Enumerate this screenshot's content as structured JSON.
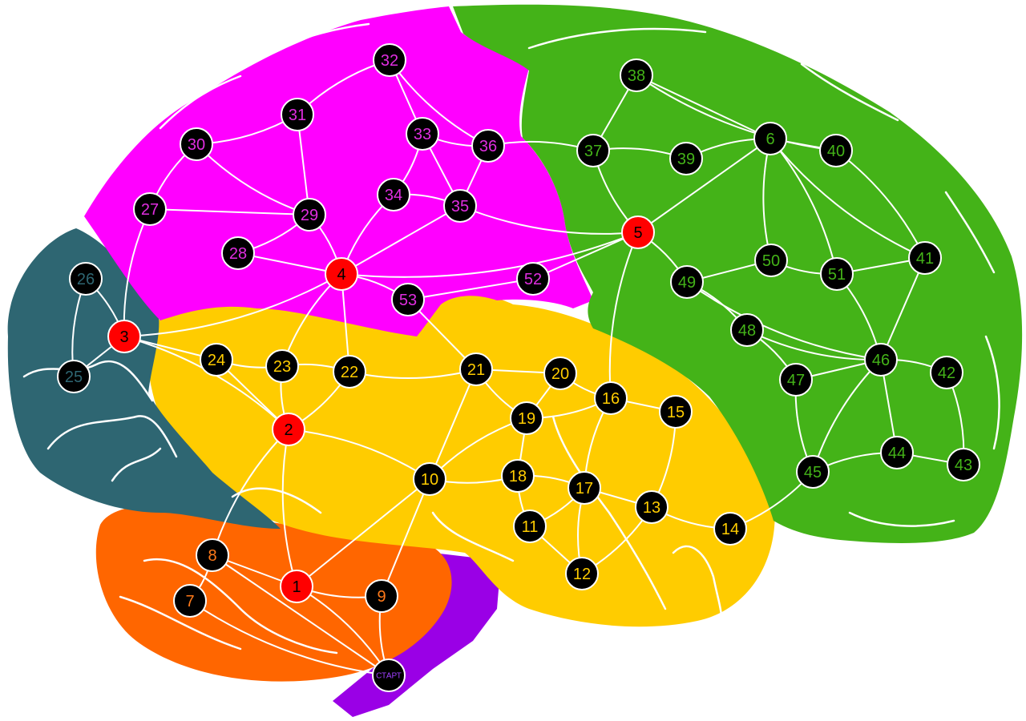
{
  "board": {
    "regions": {
      "frontal": "#44b318",
      "parietal": "#ff00ff",
      "occipital": "#2e6672",
      "temporal": "#ffcc00",
      "cerebellum": "#ff6600",
      "stem": "#9a00e6"
    },
    "node_fill_normal": "#000000",
    "node_fill_hub": "#ff0000",
    "node_text_color": {
      "frontal": "#44b318",
      "parietal": "#e02ee0",
      "occipital": "#2e6672",
      "temporal": "#ffcc00",
      "cerebellum": "#ff7a1a",
      "stem": "#a040ff",
      "hub": "#000000"
    },
    "start_label": "СТАРТ",
    "nodes": [
      {
        "id": "1",
        "label": "1",
        "region": "hub"
      },
      {
        "id": "2",
        "label": "2",
        "region": "hub"
      },
      {
        "id": "3",
        "label": "3",
        "region": "hub"
      },
      {
        "id": "4",
        "label": "4",
        "region": "hub"
      },
      {
        "id": "5",
        "label": "5",
        "region": "hub"
      },
      {
        "id": "6",
        "label": "6",
        "region": "frontal"
      },
      {
        "id": "7",
        "label": "7",
        "region": "cerebellum"
      },
      {
        "id": "8",
        "label": "8",
        "region": "cerebellum"
      },
      {
        "id": "9",
        "label": "9",
        "region": "cerebellum"
      },
      {
        "id": "10",
        "label": "10",
        "region": "temporal"
      },
      {
        "id": "11",
        "label": "11",
        "region": "temporal"
      },
      {
        "id": "12",
        "label": "12",
        "region": "temporal"
      },
      {
        "id": "13",
        "label": "13",
        "region": "temporal"
      },
      {
        "id": "14",
        "label": "14",
        "region": "temporal"
      },
      {
        "id": "15",
        "label": "15",
        "region": "temporal"
      },
      {
        "id": "16",
        "label": "16",
        "region": "temporal"
      },
      {
        "id": "17",
        "label": "17",
        "region": "temporal"
      },
      {
        "id": "18",
        "label": "18",
        "region": "temporal"
      },
      {
        "id": "19",
        "label": "19",
        "region": "temporal"
      },
      {
        "id": "20",
        "label": "20",
        "region": "temporal"
      },
      {
        "id": "21",
        "label": "21",
        "region": "temporal"
      },
      {
        "id": "22",
        "label": "22",
        "region": "temporal"
      },
      {
        "id": "23",
        "label": "23",
        "region": "temporal"
      },
      {
        "id": "24",
        "label": "24",
        "region": "temporal"
      },
      {
        "id": "25",
        "label": "25",
        "region": "occipital"
      },
      {
        "id": "26",
        "label": "26",
        "region": "occipital"
      },
      {
        "id": "27",
        "label": "27",
        "region": "parietal"
      },
      {
        "id": "28",
        "label": "28",
        "region": "parietal"
      },
      {
        "id": "29",
        "label": "29",
        "region": "parietal"
      },
      {
        "id": "30",
        "label": "30",
        "region": "parietal"
      },
      {
        "id": "31",
        "label": "31",
        "region": "parietal"
      },
      {
        "id": "32",
        "label": "32",
        "region": "parietal"
      },
      {
        "id": "33",
        "label": "33",
        "region": "parietal"
      },
      {
        "id": "34",
        "label": "34",
        "region": "parietal"
      },
      {
        "id": "35",
        "label": "35",
        "region": "parietal"
      },
      {
        "id": "36",
        "label": "36",
        "region": "parietal"
      },
      {
        "id": "37",
        "label": "37",
        "region": "frontal"
      },
      {
        "id": "38",
        "label": "38",
        "region": "frontal"
      },
      {
        "id": "39",
        "label": "39",
        "region": "frontal"
      },
      {
        "id": "40",
        "label": "40",
        "region": "frontal"
      },
      {
        "id": "41",
        "label": "41",
        "region": "frontal"
      },
      {
        "id": "42",
        "label": "42",
        "region": "frontal"
      },
      {
        "id": "43",
        "label": "43",
        "region": "frontal"
      },
      {
        "id": "44",
        "label": "44",
        "region": "frontal"
      },
      {
        "id": "45",
        "label": "45",
        "region": "frontal"
      },
      {
        "id": "46",
        "label": "46",
        "region": "frontal"
      },
      {
        "id": "47",
        "label": "47",
        "region": "frontal"
      },
      {
        "id": "48",
        "label": "48",
        "region": "frontal"
      },
      {
        "id": "49",
        "label": "49",
        "region": "frontal"
      },
      {
        "id": "50",
        "label": "50",
        "region": "frontal"
      },
      {
        "id": "51",
        "label": "51",
        "region": "frontal"
      },
      {
        "id": "52",
        "label": "52",
        "region": "parietal"
      },
      {
        "id": "53",
        "label": "53",
        "region": "parietal"
      }
    ],
    "edges": [
      [
        "S",
        "7"
      ],
      [
        "S",
        "8"
      ],
      [
        "S",
        "1"
      ],
      [
        "S",
        "9"
      ],
      [
        "1",
        "8"
      ],
      [
        "1",
        "9"
      ],
      [
        "1",
        "2"
      ],
      [
        "1",
        "10"
      ],
      [
        "7",
        "8"
      ],
      [
        "8",
        "2"
      ],
      [
        "9",
        "10"
      ],
      [
        "2",
        "3"
      ],
      [
        "2",
        "23"
      ],
      [
        "2",
        "24"
      ],
      [
        "2",
        "22"
      ],
      [
        "2",
        "10"
      ],
      [
        "3",
        "25"
      ],
      [
        "3",
        "26"
      ],
      [
        "3",
        "27"
      ],
      [
        "3",
        "24"
      ],
      [
        "3",
        "4"
      ],
      [
        "25",
        "26"
      ],
      [
        "4",
        "28"
      ],
      [
        "4",
        "29"
      ],
      [
        "4",
        "34"
      ],
      [
        "4",
        "35"
      ],
      [
        "4",
        "5"
      ],
      [
        "4",
        "53"
      ],
      [
        "4",
        "22"
      ],
      [
        "4",
        "23"
      ],
      [
        "27",
        "30"
      ],
      [
        "27",
        "29"
      ],
      [
        "28",
        "29"
      ],
      [
        "29",
        "30"
      ],
      [
        "29",
        "31"
      ],
      [
        "30",
        "31"
      ],
      [
        "31",
        "32"
      ],
      [
        "32",
        "33"
      ],
      [
        "32",
        "36"
      ],
      [
        "33",
        "34"
      ],
      [
        "33",
        "35"
      ],
      [
        "33",
        "36"
      ],
      [
        "34",
        "35"
      ],
      [
        "35",
        "36"
      ],
      [
        "35",
        "5"
      ],
      [
        "36",
        "37"
      ],
      [
        "37",
        "38"
      ],
      [
        "37",
        "5"
      ],
      [
        "37",
        "39"
      ],
      [
        "38",
        "6"
      ],
      [
        "38",
        "40"
      ],
      [
        "39",
        "6"
      ],
      [
        "6",
        "5"
      ],
      [
        "6",
        "50"
      ],
      [
        "6",
        "51"
      ],
      [
        "6",
        "40"
      ],
      [
        "6",
        "41"
      ],
      [
        "5",
        "49"
      ],
      [
        "5",
        "52"
      ],
      [
        "5",
        "16"
      ],
      [
        "40",
        "41"
      ],
      [
        "41",
        "46"
      ],
      [
        "50",
        "51"
      ],
      [
        "51",
        "46"
      ],
      [
        "41",
        "51"
      ],
      [
        "49",
        "46"
      ],
      [
        "49",
        "48"
      ],
      [
        "49",
        "50"
      ],
      [
        "48",
        "46"
      ],
      [
        "48",
        "47"
      ],
      [
        "47",
        "46"
      ],
      [
        "47",
        "45"
      ],
      [
        "46",
        "42"
      ],
      [
        "46",
        "44"
      ],
      [
        "46",
        "45"
      ],
      [
        "42",
        "43"
      ],
      [
        "43",
        "44"
      ],
      [
        "44",
        "45"
      ],
      [
        "45",
        "14"
      ],
      [
        "10",
        "21"
      ],
      [
        "10",
        "18"
      ],
      [
        "10",
        "19"
      ],
      [
        "18",
        "19"
      ],
      [
        "18",
        "11"
      ],
      [
        "18",
        "17"
      ],
      [
        "19",
        "20"
      ],
      [
        "19",
        "16"
      ],
      [
        "19",
        "21"
      ],
      [
        "20",
        "21"
      ],
      [
        "20",
        "16"
      ],
      [
        "21",
        "22"
      ],
      [
        "21",
        "53"
      ],
      [
        "22",
        "23"
      ],
      [
        "23",
        "24"
      ],
      [
        "16",
        "15"
      ],
      [
        "16",
        "17"
      ],
      [
        "15",
        "13"
      ],
      [
        "17",
        "13"
      ],
      [
        "17",
        "12"
      ],
      [
        "17",
        "11"
      ],
      [
        "11",
        "12"
      ],
      [
        "13",
        "14"
      ],
      [
        "13",
        "12"
      ],
      [
        "52",
        "53"
      ]
    ]
  }
}
